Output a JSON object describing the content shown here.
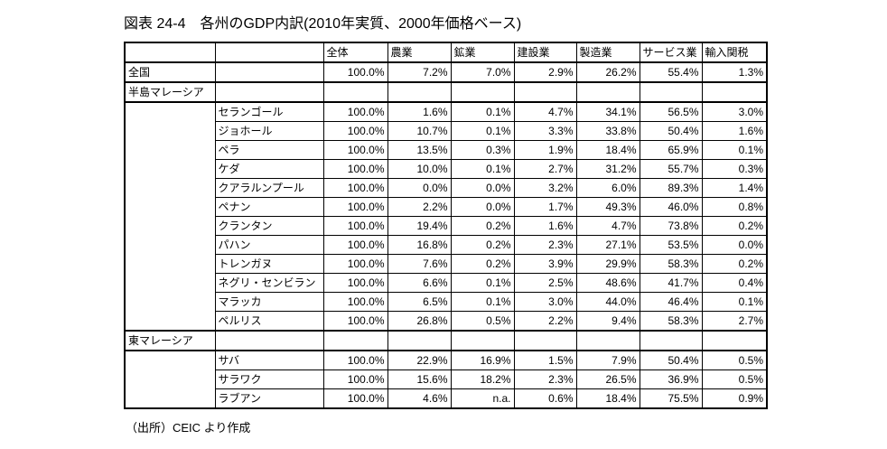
{
  "title": "図表 24-4　各州のGDP内訳(2010年実質、2000年価格ベース)",
  "source_note": "（出所）CEIC より作成",
  "colors": {
    "text": "#000000",
    "border": "#000000",
    "background": "#ffffff"
  },
  "table": {
    "columns": [
      "全体",
      "農業",
      "鉱業",
      "建設業",
      "製造業",
      "サービス業",
      "輸入関税"
    ],
    "sections": [
      {
        "name": "全国",
        "values": [
          "100.0%",
          "7.2%",
          "7.0%",
          "2.9%",
          "26.2%",
          "55.4%",
          "1.3%"
        ]
      },
      {
        "name": "半島マレーシア",
        "states": [
          {
            "name": "セランゴール",
            "values": [
              "100.0%",
              "1.6%",
              "0.1%",
              "4.7%",
              "34.1%",
              "56.5%",
              "3.0%"
            ]
          },
          {
            "name": "ジョホール",
            "values": [
              "100.0%",
              "10.7%",
              "0.1%",
              "3.3%",
              "33.8%",
              "50.4%",
              "1.6%"
            ]
          },
          {
            "name": "ペラ",
            "values": [
              "100.0%",
              "13.5%",
              "0.3%",
              "1.9%",
              "18.4%",
              "65.9%",
              "0.1%"
            ]
          },
          {
            "name": "ケダ",
            "values": [
              "100.0%",
              "10.0%",
              "0.1%",
              "2.7%",
              "31.2%",
              "55.7%",
              "0.3%"
            ]
          },
          {
            "name": "クアラルンプール",
            "values": [
              "100.0%",
              "0.0%",
              "0.0%",
              "3.2%",
              "6.0%",
              "89.3%",
              "1.4%"
            ]
          },
          {
            "name": "ペナン",
            "values": [
              "100.0%",
              "2.2%",
              "0.0%",
              "1.7%",
              "49.3%",
              "46.0%",
              "0.8%"
            ]
          },
          {
            "name": "クランタン",
            "values": [
              "100.0%",
              "19.4%",
              "0.2%",
              "1.6%",
              "4.7%",
              "73.8%",
              "0.2%"
            ]
          },
          {
            "name": "パハン",
            "values": [
              "100.0%",
              "16.8%",
              "0.2%",
              "2.3%",
              "27.1%",
              "53.5%",
              "0.0%"
            ]
          },
          {
            "name": "トレンガヌ",
            "values": [
              "100.0%",
              "7.6%",
              "0.2%",
              "3.9%",
              "29.9%",
              "58.3%",
              "0.2%"
            ]
          },
          {
            "name": "ネグリ・センビラン",
            "values": [
              "100.0%",
              "6.6%",
              "0.1%",
              "2.5%",
              "48.6%",
              "41.7%",
              "0.4%"
            ]
          },
          {
            "name": "マラッカ",
            "values": [
              "100.0%",
              "6.5%",
              "0.1%",
              "3.0%",
              "44.0%",
              "46.4%",
              "0.1%"
            ]
          },
          {
            "name": "ペルリス",
            "values": [
              "100.0%",
              "26.8%",
              "0.5%",
              "2.2%",
              "9.4%",
              "58.3%",
              "2.7%"
            ]
          }
        ]
      },
      {
        "name": "東マレーシア",
        "states": [
          {
            "name": "サバ",
            "values": [
              "100.0%",
              "22.9%",
              "16.9%",
              "1.5%",
              "7.9%",
              "50.4%",
              "0.5%"
            ]
          },
          {
            "name": "サラワク",
            "values": [
              "100.0%",
              "15.6%",
              "18.2%",
              "2.3%",
              "26.5%",
              "36.9%",
              "0.5%"
            ]
          },
          {
            "name": "ラブアン",
            "values": [
              "100.0%",
              "4.6%",
              "n.a.",
              "0.6%",
              "18.4%",
              "75.5%",
              "0.9%"
            ]
          }
        ]
      }
    ]
  }
}
